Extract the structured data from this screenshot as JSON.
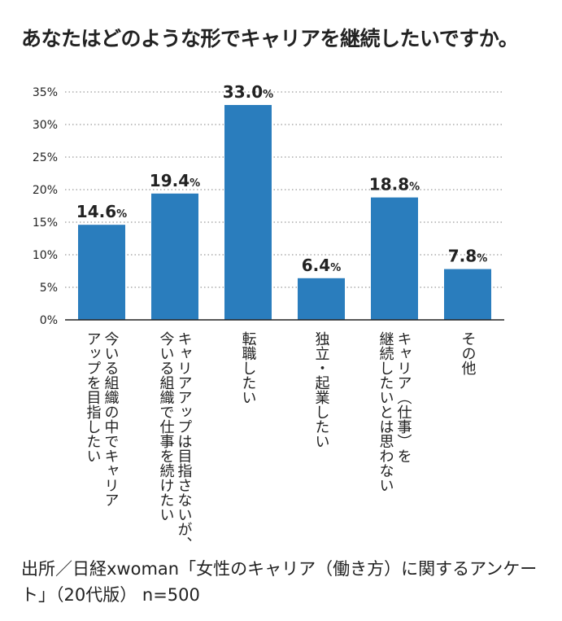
{
  "title": "あなたはどのような形でキャリアを継続したいですか。",
  "source": "出所／日経xwoman「女性のキャリア（働き方）に関するアンケート」（20代版） n=500",
  "colors": {
    "bar": "#2a7dbd",
    "grid": "#9a9a9a",
    "axis": "#222222"
  },
  "chart_data": {
    "type": "bar",
    "title": "あなたはどのような形でキャリアを継続したいですか。",
    "categories": [
      [
        "今いる組織の中でキャリア",
        "アップを目指したい"
      ],
      [
        "キャリアアップは目指さないが、",
        "今いる組織で仕事を続けたい"
      ],
      [
        "転職したい"
      ],
      [
        "独立・起業したい"
      ],
      [
        "キャリア（仕事）を",
        "継続したいとは思わない"
      ],
      [
        "その他"
      ]
    ],
    "values": [
      14.6,
      19.4,
      33.0,
      6.4,
      18.8,
      7.8
    ],
    "value_labels": [
      "14.6",
      "19.4",
      "33.0",
      "6.4",
      "18.8",
      "7.8"
    ],
    "value_suffix": "%",
    "yticks": [
      "0%",
      "5%",
      "10%",
      "15%",
      "20%",
      "25%",
      "30%",
      "35%"
    ],
    "ylim": [
      0,
      35
    ],
    "grid": true,
    "xlabel": "",
    "ylabel": ""
  }
}
